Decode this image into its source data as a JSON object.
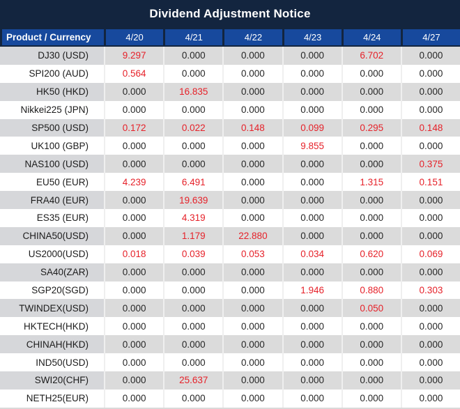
{
  "title": "Dividend Adjustment Notice",
  "colors": {
    "title_bar_bg": "#13253F",
    "header_bg": "#17499D",
    "header_text": "#FFFFFF",
    "row_alt_bg": "#DBDBDB",
    "row_alt_product_bg": "#D6D7DA",
    "row_bg": "#FFFFFF",
    "value_text": "#262626",
    "highlight_red": "#E62129"
  },
  "table": {
    "product_header": "Product / Currency",
    "date_headers": [
      "4/20",
      "4/21",
      "4/22",
      "4/23",
      "4/24",
      "4/27"
    ],
    "rows": [
      {
        "product": "DJ30 (USD)",
        "values": [
          "9.297",
          "0.000",
          "0.000",
          "0.000",
          "6.702",
          "0.000"
        ],
        "red": [
          true,
          false,
          false,
          false,
          true,
          false
        ]
      },
      {
        "product": "SPI200 (AUD)",
        "values": [
          "0.564",
          "0.000",
          "0.000",
          "0.000",
          "0.000",
          "0.000"
        ],
        "red": [
          true,
          false,
          false,
          false,
          false,
          false
        ]
      },
      {
        "product": "HK50 (HKD)",
        "values": [
          "0.000",
          "16.835",
          "0.000",
          "0.000",
          "0.000",
          "0.000"
        ],
        "red": [
          false,
          true,
          false,
          false,
          false,
          false
        ]
      },
      {
        "product": "Nikkei225 (JPN)",
        "values": [
          "0.000",
          "0.000",
          "0.000",
          "0.000",
          "0.000",
          "0.000"
        ],
        "red": [
          false,
          false,
          false,
          false,
          false,
          false
        ]
      },
      {
        "product": "SP500 (USD)",
        "values": [
          "0.172",
          "0.022",
          "0.148",
          "0.099",
          "0.295",
          "0.148"
        ],
        "red": [
          true,
          true,
          true,
          true,
          true,
          true
        ]
      },
      {
        "product": "UK100 (GBP)",
        "values": [
          "0.000",
          "0.000",
          "0.000",
          "9.855",
          "0.000",
          "0.000"
        ],
        "red": [
          false,
          false,
          false,
          true,
          false,
          false
        ]
      },
      {
        "product": "NAS100 (USD)",
        "values": [
          "0.000",
          "0.000",
          "0.000",
          "0.000",
          "0.000",
          "0.375"
        ],
        "red": [
          false,
          false,
          false,
          false,
          false,
          true
        ]
      },
      {
        "product": "EU50 (EUR)",
        "values": [
          "4.239",
          "6.491",
          "0.000",
          "0.000",
          "1.315",
          "0.151"
        ],
        "red": [
          true,
          true,
          false,
          false,
          true,
          true
        ]
      },
      {
        "product": "FRA40 (EUR)",
        "values": [
          "0.000",
          "19.639",
          "0.000",
          "0.000",
          "0.000",
          "0.000"
        ],
        "red": [
          false,
          true,
          false,
          false,
          false,
          false
        ]
      },
      {
        "product": "ES35 (EUR)",
        "values": [
          "0.000",
          "4.319",
          "0.000",
          "0.000",
          "0.000",
          "0.000"
        ],
        "red": [
          false,
          true,
          false,
          false,
          false,
          false
        ]
      },
      {
        "product": "CHINA50(USD)",
        "values": [
          "0.000",
          "1.179",
          "22.880",
          "0.000",
          "0.000",
          "0.000"
        ],
        "red": [
          false,
          true,
          true,
          false,
          false,
          false
        ]
      },
      {
        "product": "US2000(USD)",
        "values": [
          "0.018",
          "0.039",
          "0.053",
          "0.034",
          "0.620",
          "0.069"
        ],
        "red": [
          true,
          true,
          true,
          true,
          true,
          true
        ]
      },
      {
        "product": "SA40(ZAR)",
        "values": [
          "0.000",
          "0.000",
          "0.000",
          "0.000",
          "0.000",
          "0.000"
        ],
        "red": [
          false,
          false,
          false,
          false,
          false,
          false
        ]
      },
      {
        "product": "SGP20(SGD)",
        "values": [
          "0.000",
          "0.000",
          "0.000",
          "1.946",
          "0.880",
          "0.303"
        ],
        "red": [
          false,
          false,
          false,
          true,
          true,
          true
        ]
      },
      {
        "product": "TWINDEX(USD)",
        "values": [
          "0.000",
          "0.000",
          "0.000",
          "0.000",
          "0.050",
          "0.000"
        ],
        "red": [
          false,
          false,
          false,
          false,
          true,
          false
        ]
      },
      {
        "product": "HKTECH(HKD)",
        "values": [
          "0.000",
          "0.000",
          "0.000",
          "0.000",
          "0.000",
          "0.000"
        ],
        "red": [
          false,
          false,
          false,
          false,
          false,
          false
        ]
      },
      {
        "product": "CHINAH(HKD)",
        "values": [
          "0.000",
          "0.000",
          "0.000",
          "0.000",
          "0.000",
          "0.000"
        ],
        "red": [
          false,
          false,
          false,
          false,
          false,
          false
        ]
      },
      {
        "product": "IND50(USD)",
        "values": [
          "0.000",
          "0.000",
          "0.000",
          "0.000",
          "0.000",
          "0.000"
        ],
        "red": [
          false,
          false,
          false,
          false,
          false,
          false
        ]
      },
      {
        "product": "SWI20(CHF)",
        "values": [
          "0.000",
          "25.637",
          "0.000",
          "0.000",
          "0.000",
          "0.000"
        ],
        "red": [
          false,
          true,
          false,
          false,
          false,
          false
        ]
      },
      {
        "product": "NETH25(EUR)",
        "values": [
          "0.000",
          "0.000",
          "0.000",
          "0.000",
          "0.000",
          "0.000"
        ],
        "red": [
          false,
          false,
          false,
          false,
          false,
          false
        ]
      }
    ]
  }
}
